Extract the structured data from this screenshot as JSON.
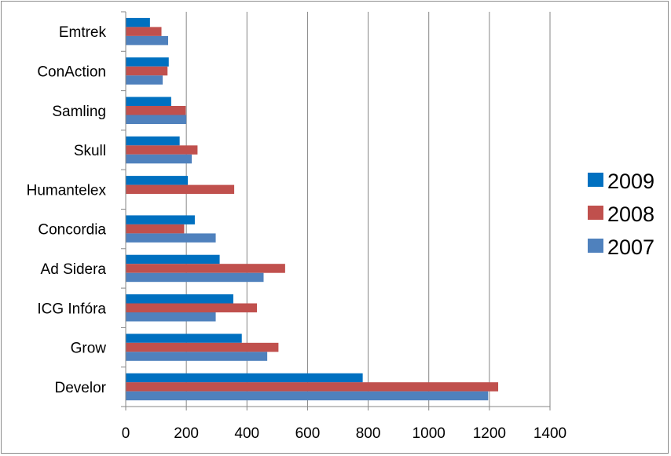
{
  "chart_data": {
    "type": "bar",
    "orientation": "horizontal",
    "categories": [
      "Emtrek",
      "ConAction",
      "Samling",
      "Skull",
      "Humantelex",
      "Concordia",
      "Ad Sidera",
      "ICG Infóra",
      "Grow",
      "Develor"
    ],
    "series": [
      {
        "name": "2009",
        "color": "#0070c0",
        "values": [
          80,
          142,
          150,
          178,
          205,
          228,
          310,
          355,
          383,
          782
        ]
      },
      {
        "name": "2008",
        "color": "#c0504d",
        "values": [
          118,
          138,
          198,
          237,
          358,
          193,
          526,
          433,
          504,
          1229
        ]
      },
      {
        "name": "2007",
        "color": "#4f81bd",
        "values": [
          140,
          122,
          200,
          218,
          null,
          297,
          455,
          297,
          467,
          1196
        ]
      }
    ],
    "xlim": [
      0,
      1400
    ],
    "xticks": [
      "0",
      "200",
      "400",
      "600",
      "800",
      "1000",
      "1200",
      "1400"
    ],
    "grid": true,
    "legend_position": "right",
    "title": "",
    "xlabel": "",
    "ylabel": ""
  }
}
